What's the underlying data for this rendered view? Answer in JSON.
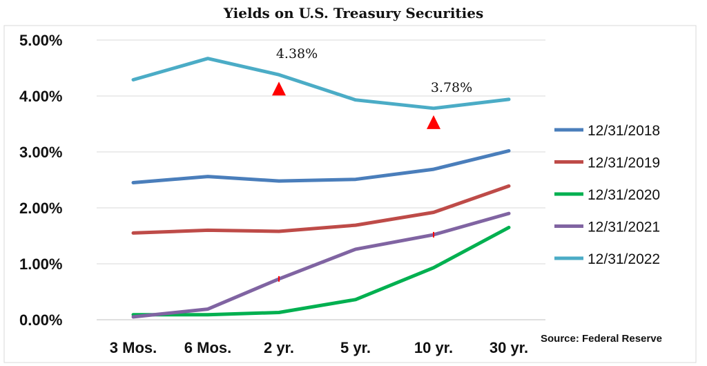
{
  "chart_data": {
    "type": "line",
    "title": "Yields on U.S. Treasury Securities",
    "categories": [
      "3 Mos.",
      "6 Mos.",
      "2 yr.",
      "5 yr.",
      "10 yr.",
      "30 yr."
    ],
    "ylim": [
      0,
      5
    ],
    "yticks": [
      {
        "value": 0,
        "label": "0.00%"
      },
      {
        "value": 1,
        "label": "1.00%"
      },
      {
        "value": 2,
        "label": "2.00%"
      },
      {
        "value": 3,
        "label": "3.00%"
      },
      {
        "value": 4,
        "label": "4.00%"
      },
      {
        "value": 5,
        "label": "5.00%"
      }
    ],
    "grid": true,
    "legend_position": "right",
    "series": [
      {
        "name": "12/31/2018",
        "color": "#4a7ebb",
        "values": [
          2.45,
          2.56,
          2.48,
          2.51,
          2.69,
          3.02
        ]
      },
      {
        "name": "12/31/2019",
        "color": "#be4b48",
        "values": [
          1.55,
          1.6,
          1.58,
          1.69,
          1.92,
          2.39
        ]
      },
      {
        "name": "12/31/2020",
        "color": "#00b050",
        "values": [
          0.09,
          0.09,
          0.13,
          0.36,
          0.93,
          1.65
        ]
      },
      {
        "name": "12/31/2021",
        "color": "#8064a2",
        "values": [
          0.05,
          0.19,
          0.73,
          1.26,
          1.52,
          1.9
        ]
      },
      {
        "name": "12/31/2022",
        "color": "#4bacc6",
        "values": [
          4.29,
          4.67,
          4.38,
          3.93,
          3.78,
          3.94
        ]
      }
    ],
    "annotations": [
      {
        "text": "4.38%",
        "category_index": 2,
        "value": 4.38,
        "marker_color": "#ff0000"
      },
      {
        "text": "3.78%",
        "category_index": 4,
        "value": 3.78,
        "marker_color": "#ff0000"
      }
    ],
    "source": "Source: Federal Reserve"
  }
}
